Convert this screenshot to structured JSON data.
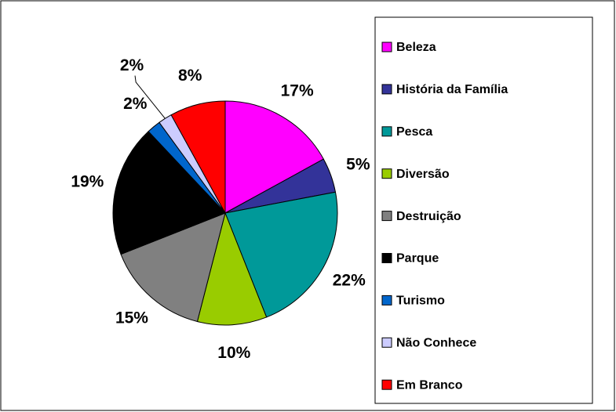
{
  "chart_data": {
    "type": "pie",
    "categories": [
      "Beleza",
      "História da Família",
      "Pesca",
      "Diversão",
      "Destruição",
      "Parque",
      "Turismo",
      "Não Conhece",
      "Em Branco"
    ],
    "values": [
      17,
      5,
      22,
      10,
      15,
      19,
      2,
      2,
      8
    ],
    "value_labels": [
      "17%",
      "5%",
      "22%",
      "10%",
      "15%",
      "19%",
      "2%",
      "2%",
      "8%"
    ],
    "colors": [
      "#ff00ff",
      "#333399",
      "#009999",
      "#99cc00",
      "#808080",
      "#000000",
      "#0066cc",
      "#ccccff",
      "#ff0000"
    ],
    "legend": "right"
  }
}
